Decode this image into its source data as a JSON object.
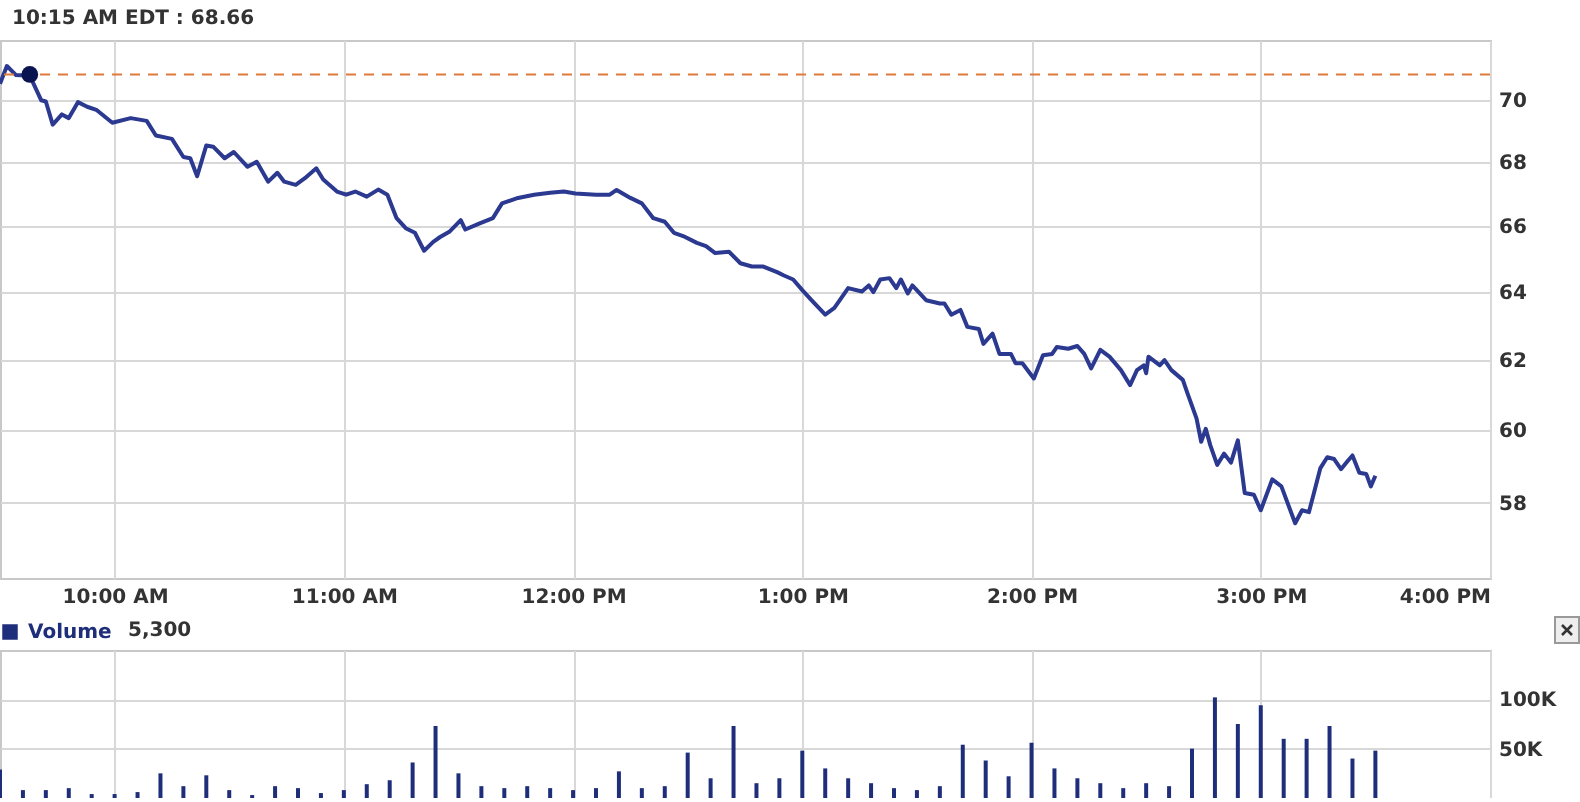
{
  "chart_data": [
    {
      "type": "line",
      "annotations": [
        "10:15 AM EDT : 68.66"
      ],
      "xlim": [
        9.5,
        16
      ],
      "xticks": [
        {
          "value": 10,
          "label": "10:00 AM"
        },
        {
          "value": 11,
          "label": "11:00 AM"
        },
        {
          "value": 12,
          "label": "12:00 PM"
        },
        {
          "value": 13,
          "label": "1:00 PM"
        },
        {
          "value": 14,
          "label": "2:00 PM"
        },
        {
          "value": 15,
          "label": "3:00 PM"
        },
        {
          "value": 16,
          "label": "4:00 PM"
        }
      ],
      "ylim": [
        56,
        72
      ],
      "yticks": [
        58,
        60,
        62,
        64,
        66,
        68,
        70
      ],
      "log": "y",
      "grid": true,
      "ref_lines": [
        {
          "axis": "y",
          "value": 70.85,
          "color": "#e07a3c",
          "line_style": "dashed"
        }
      ],
      "series": [
        {
          "color": "#2b3990",
          "x": [
            9.5,
            9.53,
            9.57,
            9.63,
            9.68,
            9.7,
            9.73,
            9.77,
            9.8,
            9.84,
            9.88,
            9.92,
            9.99,
            10.07,
            10.14,
            10.18,
            10.25,
            10.3,
            10.33,
            10.36,
            10.4,
            10.43,
            10.48,
            10.52,
            10.58,
            10.62,
            10.67,
            10.71,
            10.74,
            10.79,
            10.83,
            10.88,
            10.91,
            10.97,
            11.01,
            11.05,
            11.1,
            11.15,
            11.19,
            11.23,
            11.27,
            11.31,
            11.35,
            11.39,
            11.42,
            11.46,
            11.51,
            11.53,
            11.59,
            11.65,
            11.69,
            11.76,
            11.83,
            11.9,
            11.96,
            12.01,
            12.1,
            12.16,
            12.19,
            12.25,
            12.3,
            12.35,
            12.4,
            12.44,
            12.48,
            12.54,
            12.58,
            12.62,
            12.68,
            12.73,
            12.78,
            12.83,
            12.89,
            12.92,
            12.96,
            13.0,
            13.04,
            13.1,
            13.14,
            13.2,
            13.26,
            13.29,
            13.31,
            13.34,
            13.38,
            13.41,
            13.43,
            13.46,
            13.48,
            13.54,
            13.6,
            13.62,
            13.65,
            13.69,
            13.72,
            13.77,
            13.79,
            13.83,
            13.86,
            13.91,
            13.93,
            13.96,
            14.01,
            14.05,
            14.09,
            14.11,
            14.16,
            14.2,
            14.23,
            14.26,
            14.3,
            14.34,
            14.39,
            14.43,
            14.46,
            14.49,
            14.5,
            14.51,
            14.56,
            14.58,
            14.61,
            14.66,
            14.68,
            14.72,
            14.74,
            14.76,
            14.78,
            14.81,
            14.84,
            14.87,
            14.9,
            14.93,
            14.97,
            15.0,
            15.05,
            15.09,
            15.15,
            15.18,
            15.21,
            15.23,
            15.26,
            15.29,
            15.32,
            15.35,
            15.38,
            15.4,
            15.43,
            15.46,
            15.48,
            15.5
          ],
          "values": [
            70.54,
            71.13,
            70.83,
            70.81,
            70.0,
            69.96,
            69.21,
            69.54,
            69.42,
            69.94,
            69.79,
            69.69,
            69.27,
            69.42,
            69.33,
            68.86,
            68.75,
            68.17,
            68.13,
            67.56,
            68.54,
            68.5,
            68.13,
            68.33,
            67.86,
            68.02,
            67.39,
            67.67,
            67.39,
            67.29,
            67.5,
            67.81,
            67.46,
            67.08,
            66.98,
            67.08,
            66.92,
            67.14,
            66.98,
            66.25,
            65.94,
            65.8,
            65.25,
            65.52,
            65.67,
            65.83,
            66.19,
            65.9,
            66.08,
            66.25,
            66.71,
            66.88,
            66.98,
            67.04,
            67.08,
            67.02,
            66.98,
            66.98,
            67.13,
            66.88,
            66.71,
            66.25,
            66.14,
            65.8,
            65.7,
            65.49,
            65.39,
            65.18,
            65.22,
            64.87,
            64.77,
            64.77,
            64.6,
            64.5,
            64.38,
            64.06,
            63.76,
            63.33,
            63.53,
            64.12,
            64.02,
            64.2,
            64.0,
            64.38,
            64.42,
            64.12,
            64.38,
            63.96,
            64.2,
            63.76,
            63.66,
            63.66,
            63.33,
            63.47,
            62.97,
            62.91,
            62.47,
            62.77,
            62.18,
            62.18,
            61.91,
            61.91,
            61.47,
            62.14,
            62.18,
            62.38,
            62.33,
            62.41,
            62.18,
            61.76,
            62.3,
            62.1,
            61.71,
            61.28,
            61.71,
            61.85,
            61.62,
            62.1,
            61.85,
            62.0,
            61.71,
            61.43,
            61.05,
            60.33,
            59.68,
            60.04,
            59.58,
            59.04,
            59.35,
            59.1,
            59.72,
            58.27,
            58.22,
            57.8,
            58.64,
            58.45,
            57.45,
            57.8,
            57.75,
            58.22,
            58.95,
            59.25,
            59.2,
            58.92,
            59.15,
            59.3,
            58.82,
            58.79,
            58.45,
            58.74
          ]
        },
        {
          "type": "scatter",
          "color": "#0a1450",
          "marker": "circle",
          "x": [
            9.63
          ],
          "values": [
            70.85
          ]
        }
      ]
    },
    {
      "type": "bar",
      "annotations": [
        "5,300"
      ],
      "legend": "top left",
      "tick_labels": "y",
      "grid": true,
      "xlim": [
        9.5,
        16
      ],
      "xticks": [
        10,
        11,
        12,
        13,
        14,
        15,
        16
      ],
      "ylim": [
        0,
        150000
      ],
      "yticks": [
        {
          "value": 50000,
          "label": "50K"
        },
        {
          "value": 100000,
          "label": "100K"
        }
      ],
      "series": [
        {
          "name": "Volume",
          "color": "#1f2e7a",
          "x": [
            9.5,
            9.6,
            9.7,
            9.8,
            9.9,
            10.0,
            10.1,
            10.2,
            10.3,
            10.4,
            10.5,
            10.6,
            10.7,
            10.8,
            10.9,
            11.0,
            11.1,
            11.2,
            11.3,
            11.4,
            11.5,
            11.6,
            11.7,
            11.8,
            11.9,
            12.0,
            12.1,
            12.2,
            12.3,
            12.4,
            12.5,
            12.6,
            12.7,
            12.8,
            12.9,
            13.0,
            13.1,
            13.2,
            13.3,
            13.4,
            13.5,
            13.6,
            13.7,
            13.8,
            13.9,
            14.0,
            14.1,
            14.2,
            14.3,
            14.4,
            14.5,
            14.6,
            14.7,
            14.8,
            14.9,
            15.0,
            15.1,
            15.2,
            15.3,
            15.4,
            15.5
          ],
          "values": [
            29000,
            8000,
            8000,
            10000,
            4000,
            4000,
            6000,
            25000,
            12000,
            23000,
            8000,
            3000,
            12000,
            10000,
            5000,
            8000,
            14000,
            18000,
            36000,
            73000,
            25000,
            12000,
            10000,
            12000,
            10000,
            8000,
            10000,
            27000,
            10000,
            12000,
            46000,
            20000,
            73000,
            15000,
            20000,
            48000,
            30000,
            20000,
            15000,
            10000,
            8000,
            12000,
            54000,
            38000,
            22000,
            56000,
            30000,
            20000,
            15000,
            10000,
            15000,
            12000,
            50000,
            102000,
            75000,
            94000,
            60000,
            60000,
            73000,
            40000,
            48000
          ]
        }
      ]
    }
  ]
}
